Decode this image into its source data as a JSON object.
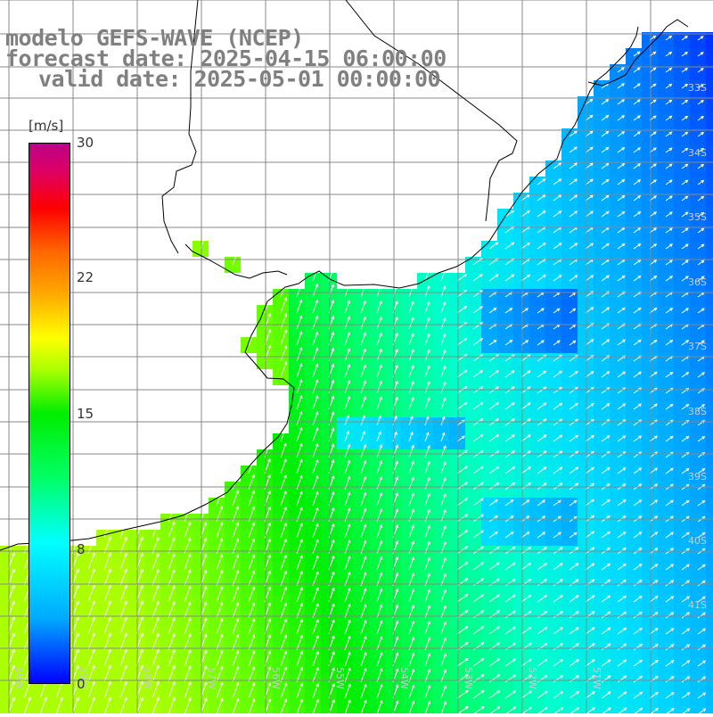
{
  "map": {
    "title_line1": "modelo GEFS-WAVE (NCEP)",
    "title_line2": "forecast date: 2025-04-15 06:00:00",
    "title_line3": "valid date: 2025-05-01 00:00:00",
    "variable": "wind speed and direction",
    "colorbar": {
      "units": "[m/s]",
      "ticks": [
        "30",
        "22",
        "15",
        "8",
        "0"
      ],
      "min": 0,
      "max": 30,
      "colors": [
        "#0000ff",
        "#00aaff",
        "#00ffff",
        "#00ff66",
        "#00ee00",
        "#aaff00",
        "#ffff00",
        "#ffaa00",
        "#ff6600",
        "#ff0000",
        "#bb0088"
      ]
    },
    "land_color": "#ffffff",
    "coastline_color": "#000000",
    "grid_color": "#888888",
    "arrow_color": "#ffffff",
    "lat_labels": [
      "33S",
      "34S",
      "35S",
      "36S",
      "37S",
      "38S",
      "39S",
      "40S",
      "41S"
    ],
    "lon_labels": [
      "60W",
      "59W",
      "58W",
      "57W",
      "56W",
      "55W",
      "54W",
      "53W",
      "52W",
      "51W"
    ]
  }
}
